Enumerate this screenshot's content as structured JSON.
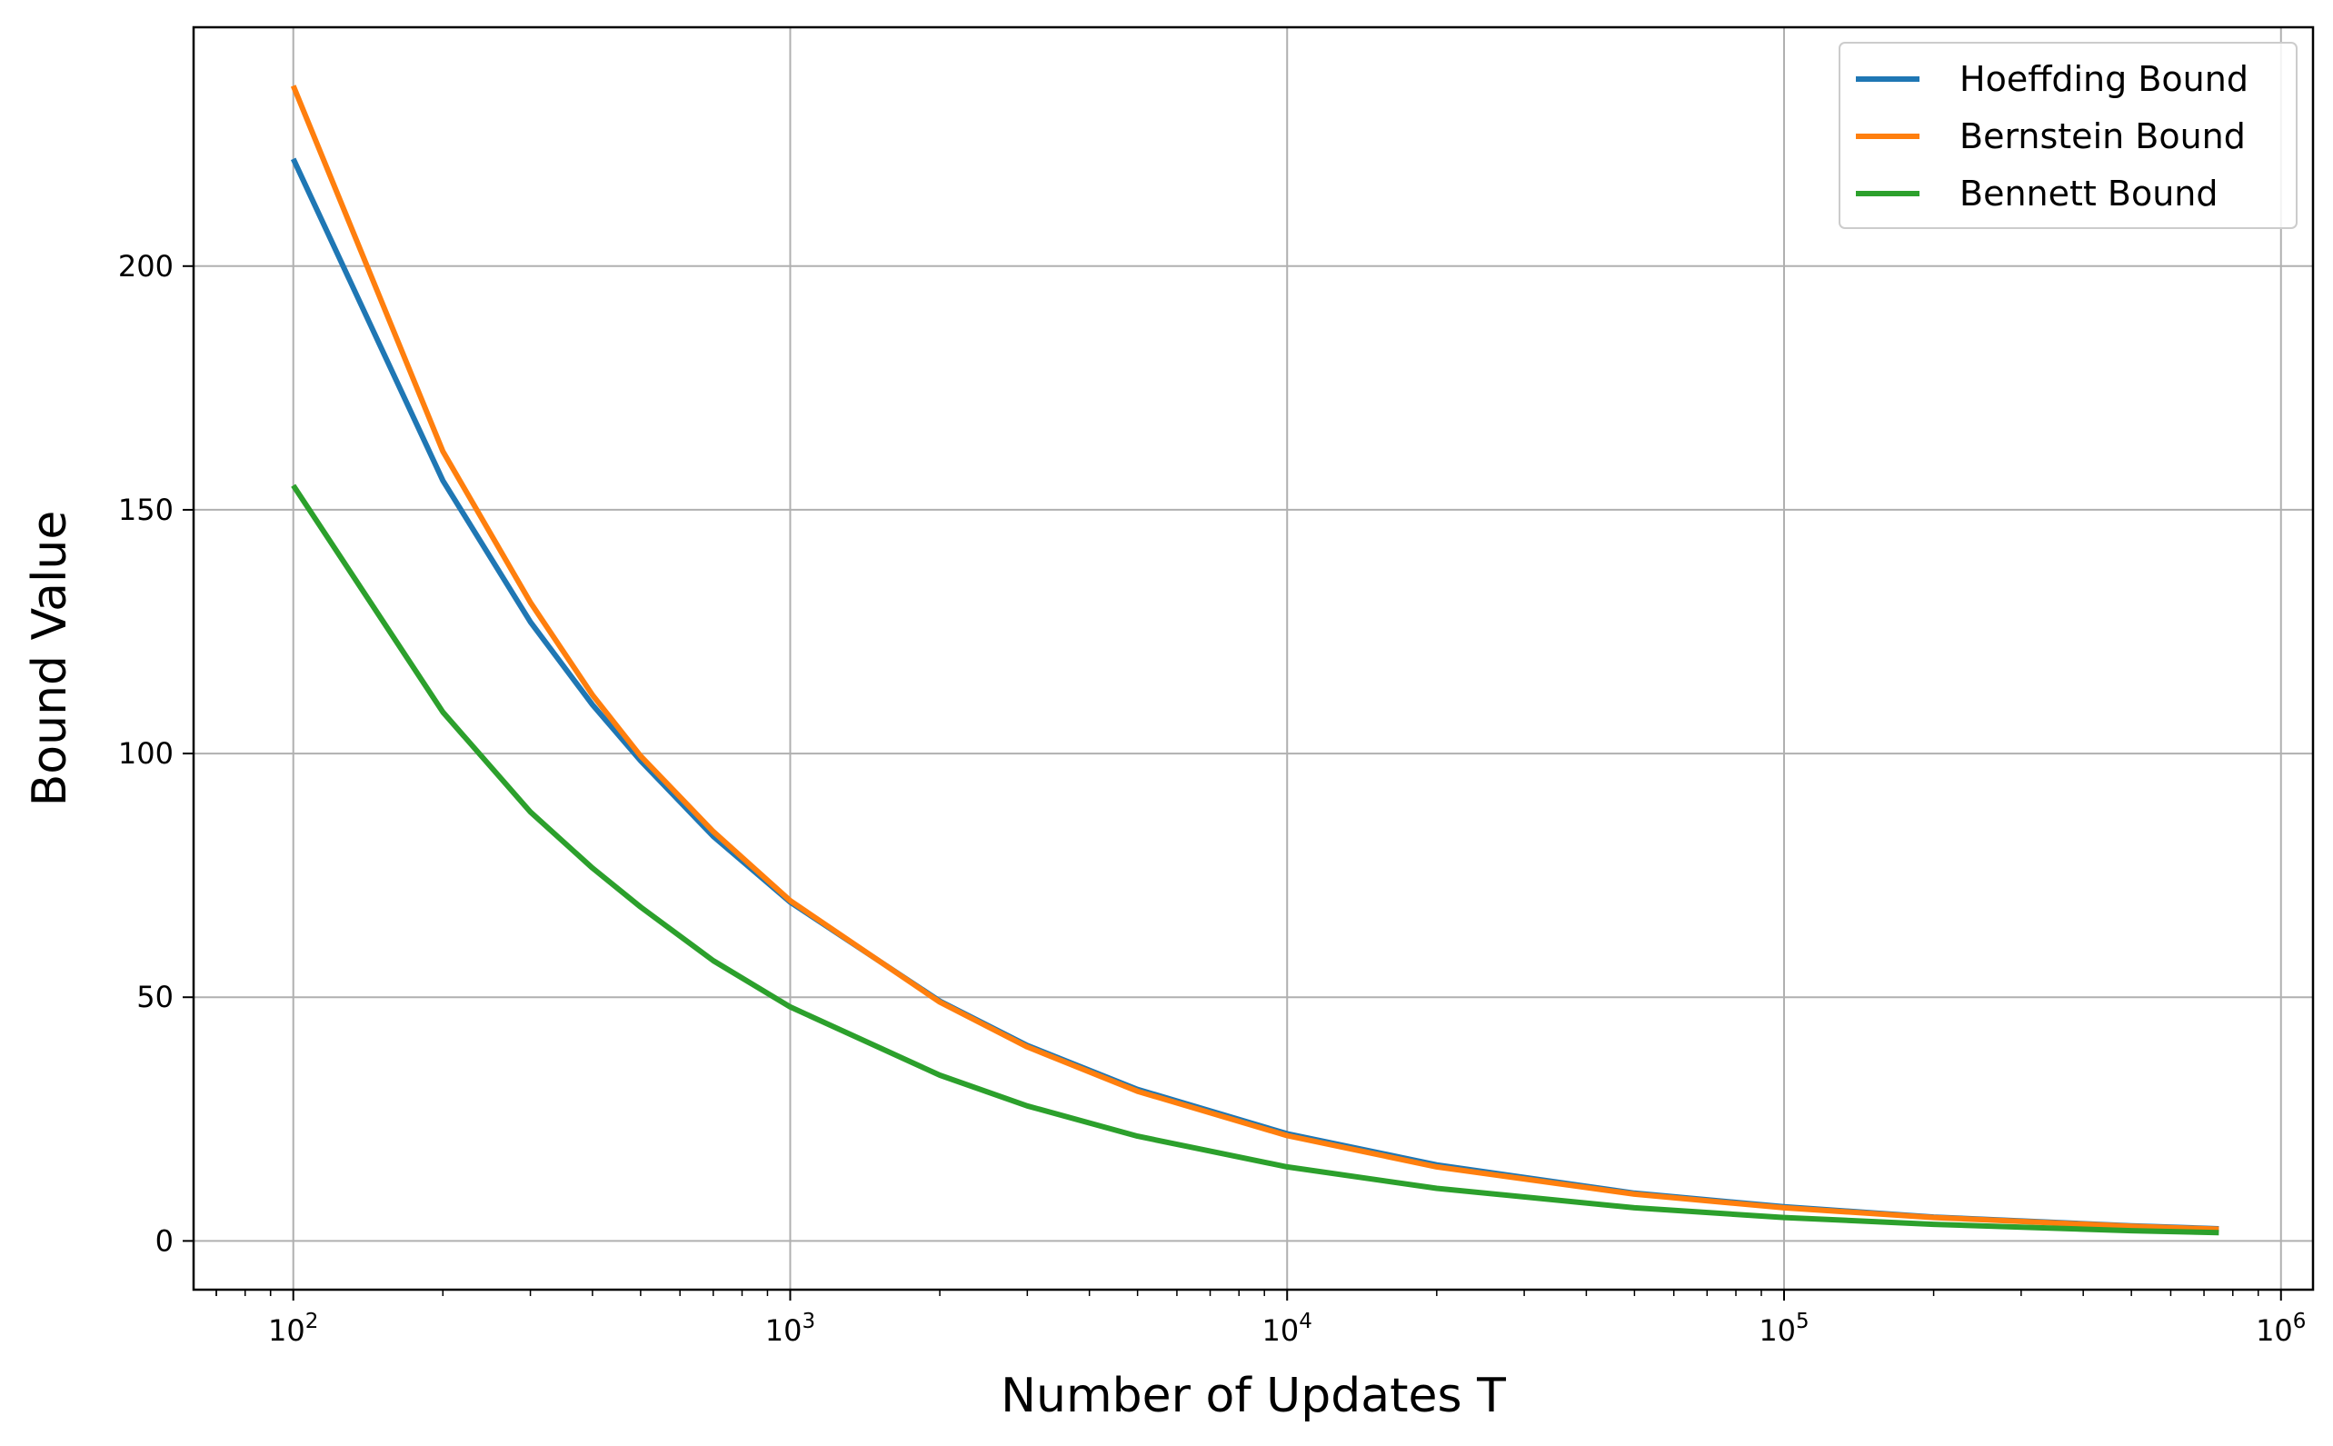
{
  "chart_data": {
    "type": "line",
    "xlabel": "Number of Updates T",
    "ylabel": "Bound Value",
    "x_scale": "log",
    "xlim": [
      63,
      1160000
    ],
    "ylim": [
      -10,
      249
    ],
    "grid": true,
    "legend_position": "top-right",
    "x_ticks": [
      {
        "value": 100,
        "base": "10",
        "exp": "2"
      },
      {
        "value": 1000,
        "base": "10",
        "exp": "3"
      },
      {
        "value": 10000,
        "base": "10",
        "exp": "4"
      },
      {
        "value": 100000,
        "base": "10",
        "exp": "5"
      },
      {
        "value": 1000000,
        "base": "10",
        "exp": "6"
      }
    ],
    "y_ticks": [
      0,
      50,
      100,
      150,
      200
    ],
    "x": [
      100,
      200,
      300,
      400,
      500,
      700,
      1000,
      2000,
      3000,
      5000,
      10000,
      20000,
      50000,
      100000,
      200000,
      500000,
      750000
    ],
    "series": [
      {
        "name": "Hoeffding Bound",
        "color": "#1f77b4",
        "values": [
          222,
          156,
          127,
          110,
          98.5,
          83,
          69.5,
          49.2,
          40.1,
          31.1,
          22.0,
          15.6,
          9.8,
          7.0,
          4.9,
          3.1,
          2.5
        ]
      },
      {
        "name": "Bernstein Bound",
        "color": "#ff7f0e",
        "values": [
          237,
          162,
          131,
          112,
          99.5,
          84,
          69.8,
          49.0,
          39.8,
          30.7,
          21.6,
          15.2,
          9.6,
          6.8,
          4.8,
          3.0,
          2.4
        ]
      },
      {
        "name": "Bennett Bound",
        "color": "#2ca02c",
        "values": [
          155,
          108.5,
          88,
          76.5,
          68.5,
          57.5,
          48.0,
          34.0,
          27.7,
          21.5,
          15.2,
          10.8,
          6.8,
          4.8,
          3.4,
          2.1,
          1.7
        ]
      }
    ]
  }
}
